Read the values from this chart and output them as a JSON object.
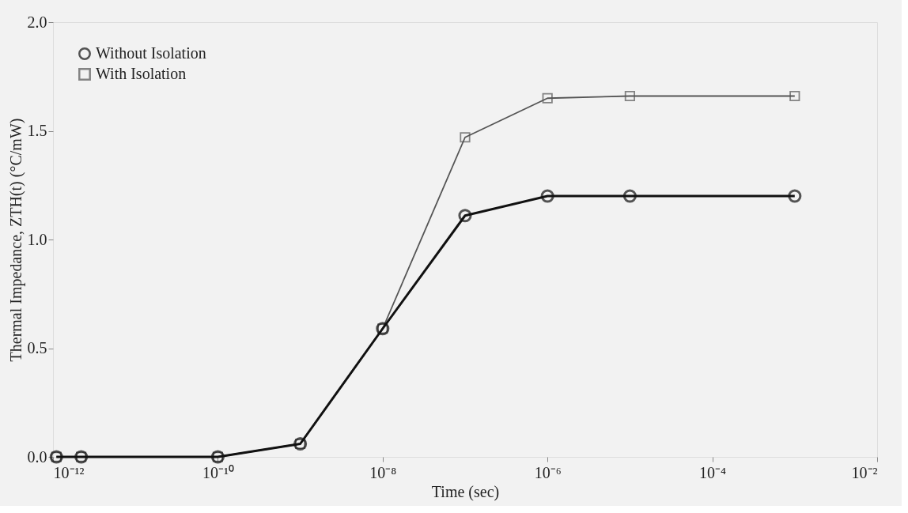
{
  "chart_data": {
    "type": "line",
    "xlabel": "Time (sec)",
    "ylabel": "Thermal Impedance, ZTH(t) (°C/mW)",
    "log": "x",
    "grid": false,
    "legend": "top left",
    "line_style": "solid",
    "xlim": [
      1e-12,
      0.01
    ],
    "ylim": [
      0,
      2.0
    ],
    "xticks": [
      {
        "value": 1e-12,
        "label": "10⁻¹²"
      },
      {
        "value": 1e-10,
        "label": "10⁻¹⁰"
      },
      {
        "value": 1e-08,
        "label": "10⁻⁸"
      },
      {
        "value": 1e-06,
        "label": "10⁻⁶"
      },
      {
        "value": 0.0001,
        "label": "10⁻⁴"
      },
      {
        "value": 0.01,
        "label": "10⁻²"
      }
    ],
    "yticks": [
      {
        "value": 0,
        "label": "0.0"
      },
      0.5,
      {
        "value": 1,
        "label": "1.0"
      },
      1.5,
      {
        "value": 2,
        "label": "2.0"
      }
    ],
    "x": [
      1.1e-12,
      2.2e-12,
      1e-10,
      1e-09,
      1e-08,
      1e-07,
      1e-06,
      1e-05,
      0.001
    ],
    "series": [
      {
        "name": "Without Isolation",
        "color": "#111111",
        "marker": "circle",
        "values": [
          0.0,
          0.0,
          0.0,
          0.06,
          0.59,
          1.11,
          1.2,
          1.2,
          1.2
        ]
      },
      {
        "name": "With Isolation",
        "color": "#555555",
        "marker": "square",
        "values": [
          0.0,
          0.0,
          0.0,
          0.06,
          0.59,
          1.47,
          1.65,
          1.66,
          1.66
        ]
      }
    ]
  }
}
